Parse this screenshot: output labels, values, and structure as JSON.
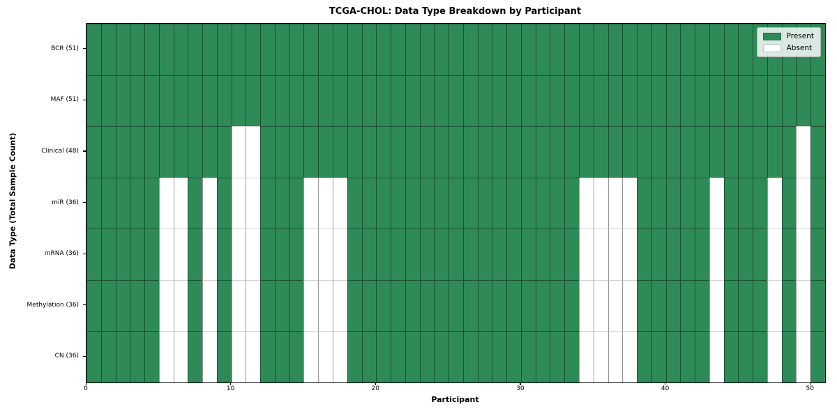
{
  "chart_data": {
    "type": "heatmap",
    "title": "TCGA-CHOL: Data Type Breakdown by Participant",
    "xlabel": "Participant",
    "ylabel": "Data Type (Total Sample Count)",
    "x_ticks": [
      0,
      10,
      20,
      30,
      40,
      50
    ],
    "x_range": [
      0,
      51
    ],
    "n_participants": 51,
    "grid": true,
    "colors": {
      "present": "#2e8b57",
      "absent": "#ffffff"
    },
    "legend": {
      "position": "upper right",
      "entries": [
        {
          "label": "Present",
          "color": "#2e8b57"
        },
        {
          "label": "Absent",
          "color": "#ffffff"
        }
      ]
    },
    "rows": [
      {
        "label": "BCR (51)",
        "data_type": "BCR",
        "total_samples": 51,
        "absent_participants": []
      },
      {
        "label": "MAF (51)",
        "data_type": "MAF",
        "total_samples": 51,
        "absent_participants": []
      },
      {
        "label": "Clinical (48)",
        "data_type": "Clinical",
        "total_samples": 48,
        "absent_participants": [
          10,
          11,
          49
        ]
      },
      {
        "label": "miR (36)",
        "data_type": "miR",
        "total_samples": 36,
        "absent_participants": [
          5,
          6,
          8,
          10,
          11,
          15,
          16,
          17,
          34,
          35,
          36,
          37,
          43,
          47,
          49
        ]
      },
      {
        "label": "mRNA (36)",
        "data_type": "mRNA",
        "total_samples": 36,
        "absent_participants": [
          5,
          6,
          8,
          10,
          11,
          15,
          16,
          17,
          34,
          35,
          36,
          37,
          43,
          47,
          49
        ]
      },
      {
        "label": "Methylation (36)",
        "data_type": "Methylation",
        "total_samples": 36,
        "absent_participants": [
          5,
          6,
          8,
          10,
          11,
          15,
          16,
          17,
          34,
          35,
          36,
          37,
          43,
          47,
          49
        ]
      },
      {
        "label": "CN (36)",
        "data_type": "CN",
        "total_samples": 36,
        "absent_participants": [
          5,
          6,
          8,
          10,
          11,
          15,
          16,
          17,
          34,
          35,
          36,
          37,
          43,
          47,
          49
        ]
      }
    ]
  }
}
